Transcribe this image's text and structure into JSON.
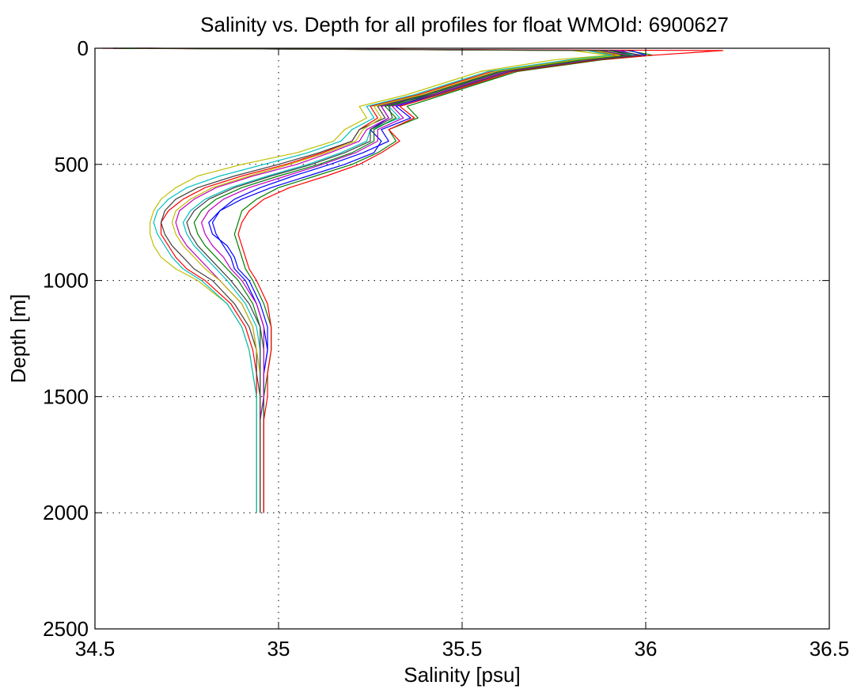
{
  "chart_data": {
    "type": "line",
    "title": "Salinity vs. Depth for all profiles for float WMOId: 6900627",
    "xlabel": "Salinity [psu]",
    "ylabel": "Depth [m]",
    "xlim": [
      34.5,
      36.5
    ],
    "ylim": [
      0,
      2500
    ],
    "y_inverted": true,
    "grid": "dotted",
    "legend": "none",
    "xticks": [
      34.5,
      35,
      35.5,
      36,
      36.5
    ],
    "xtick_labels": [
      "34.5",
      "35",
      "35.5",
      "36",
      "36.5"
    ],
    "yticks": [
      0,
      500,
      1000,
      1500,
      2000,
      2500
    ],
    "ytick_labels": [
      "0",
      "500",
      "1000",
      "1500",
      "2000",
      "2500"
    ],
    "colors": [
      "#0000ff",
      "#008000",
      "#ff0000",
      "#00bfbf",
      "#bf00bf",
      "#bfbf00",
      "#404040"
    ],
    "depths": [
      0,
      10,
      30,
      50,
      100,
      150,
      200,
      250,
      300,
      350,
      400,
      450,
      500,
      550,
      600,
      650,
      700,
      750,
      800,
      850,
      900,
      950,
      1000,
      1100,
      1200,
      1300,
      1400,
      1500,
      1600,
      1700,
      1800,
      1900,
      2000
    ],
    "series": [
      {
        "values": [
          34.55,
          35.9,
          35.98,
          35.85,
          35.62,
          35.52,
          35.42,
          35.28,
          35.3,
          35.25,
          35.28,
          35.26,
          35.18,
          35.08,
          34.98,
          34.9,
          34.84,
          34.81,
          34.82,
          34.86,
          34.88,
          34.89,
          34.92,
          34.95,
          34.97,
          34.97,
          34.96,
          34.96,
          34.95,
          34.95,
          34.95,
          34.95,
          34.95
        ]
      },
      {
        "values": [
          34.6,
          35.95,
          36.02,
          35.88,
          35.65,
          35.55,
          35.45,
          35.35,
          35.38,
          35.3,
          35.32,
          35.27,
          35.2,
          35.1,
          35.0,
          34.94,
          34.9,
          34.89,
          34.88,
          34.89,
          34.9,
          34.91,
          34.93,
          34.96,
          34.98,
          34.98,
          34.97,
          34.96,
          34.96,
          34.96,
          34.96,
          34.96,
          34.96
        ]
      },
      {
        "values": [
          34.52,
          35.85,
          35.92,
          35.8,
          35.58,
          35.48,
          35.38,
          35.25,
          35.27,
          35.22,
          35.2,
          35.12,
          35.02,
          34.9,
          34.8,
          34.74,
          34.7,
          34.68,
          34.68,
          34.7,
          34.72,
          34.75,
          34.8,
          34.87,
          34.91,
          34.93,
          34.94,
          34.94,
          34.94,
          34.94,
          34.94,
          34.94,
          34.94
        ]
      },
      {
        "values": [
          34.58,
          35.92,
          35.97,
          35.84,
          35.6,
          35.5,
          35.4,
          35.3,
          35.33,
          35.25,
          35.24,
          35.17,
          35.08,
          34.97,
          34.87,
          34.8,
          34.76,
          34.74,
          34.75,
          34.77,
          34.8,
          34.83,
          34.86,
          34.91,
          34.94,
          34.95,
          34.95,
          34.95,
          34.95,
          34.95,
          34.95,
          34.95,
          34.95
        ]
      },
      {
        "values": [
          34.65,
          35.88,
          35.95,
          35.82,
          35.6,
          35.5,
          35.4,
          35.28,
          35.3,
          35.24,
          35.22,
          35.14,
          35.05,
          34.93,
          34.83,
          34.77,
          34.73,
          34.72,
          34.73,
          34.75,
          34.78,
          34.81,
          34.84,
          34.9,
          34.93,
          34.94,
          34.95,
          34.95,
          34.95,
          34.95,
          34.95,
          34.95,
          34.95
        ]
      },
      {
        "values": [
          34.6,
          35.8,
          35.9,
          35.75,
          35.55,
          35.45,
          35.35,
          35.22,
          35.24,
          35.18,
          35.15,
          35.05,
          34.9,
          34.78,
          34.72,
          34.68,
          34.66,
          34.65,
          34.65,
          34.66,
          34.68,
          34.72,
          34.78,
          34.86,
          34.9,
          34.92,
          34.93,
          34.94,
          34.94,
          34.94,
          34.94,
          34.94,
          34.94
        ]
      },
      {
        "values": [
          34.55,
          35.87,
          35.94,
          35.82,
          35.6,
          35.5,
          35.4,
          35.27,
          35.29,
          35.22,
          35.2,
          35.11,
          35.0,
          34.88,
          34.78,
          34.72,
          34.69,
          34.68,
          34.69,
          34.71,
          34.74,
          34.77,
          34.82,
          34.88,
          34.92,
          34.94,
          34.94,
          34.95,
          34.95,
          34.95,
          34.95,
          34.95,
          34.95
        ]
      },
      {
        "values": [
          34.62,
          35.96,
          36.0,
          35.86,
          35.63,
          35.53,
          35.43,
          35.32,
          35.36,
          35.28,
          35.3,
          35.23,
          35.14,
          35.04,
          34.95,
          34.88,
          34.84,
          34.82,
          34.83,
          34.85,
          34.87,
          34.88,
          34.91,
          34.94,
          34.96,
          34.97,
          34.96,
          34.96,
          34.96,
          34.96,
          34.96,
          34.96,
          34.96
        ]
      },
      {
        "values": [
          34.57,
          35.9,
          35.96,
          35.83,
          35.61,
          35.51,
          35.41,
          35.29,
          35.32,
          35.26,
          35.26,
          35.2,
          35.11,
          35.0,
          34.9,
          34.83,
          34.79,
          34.77,
          34.78,
          34.8,
          34.83,
          34.86,
          34.89,
          34.93,
          34.95,
          34.96,
          34.96,
          34.96,
          34.96,
          34.96,
          34.96,
          34.96,
          34.96
        ]
      },
      {
        "values": [
          34.63,
          36.21,
          36.02,
          35.87,
          35.64,
          35.54,
          35.44,
          35.33,
          35.37,
          35.3,
          35.33,
          35.28,
          35.22,
          35.13,
          35.03,
          34.96,
          34.92,
          34.9,
          34.89,
          34.9,
          34.91,
          34.92,
          34.94,
          34.97,
          34.98,
          34.98,
          34.97,
          34.97,
          34.96,
          34.96,
          34.96,
          34.96,
          34.96
        ]
      },
      {
        "values": [
          34.59,
          35.84,
          35.91,
          35.79,
          35.57,
          35.47,
          35.37,
          35.24,
          35.26,
          35.2,
          35.17,
          35.08,
          34.96,
          34.84,
          34.75,
          34.7,
          34.67,
          34.66,
          34.67,
          34.69,
          34.71,
          34.74,
          34.79,
          34.86,
          34.9,
          34.92,
          34.93,
          34.94,
          34.94,
          34.94,
          34.94,
          34.94,
          34.94
        ]
      },
      {
        "values": [
          34.61,
          35.93,
          35.98,
          35.85,
          35.62,
          35.52,
          35.42,
          35.31,
          35.34,
          35.27,
          35.27,
          35.21,
          35.12,
          35.02,
          34.92,
          34.85,
          34.81,
          34.79,
          34.8,
          34.82,
          34.85,
          34.87,
          34.9,
          34.94,
          34.96,
          34.96,
          34.96,
          34.96,
          34.95,
          34.95,
          34.95,
          34.95,
          34.95
        ]
      },
      {
        "values": [
          34.56,
          35.86,
          35.93,
          35.81,
          35.59,
          35.49,
          35.39,
          35.26,
          35.28,
          35.23,
          35.21,
          35.13,
          35.03,
          34.92,
          34.82,
          34.76,
          34.72,
          34.71,
          34.72,
          34.74,
          34.77,
          34.8,
          34.84,
          34.9,
          34.93,
          34.94,
          34.95,
          34.95,
          34.95,
          34.95,
          34.95,
          34.95,
          34.95
        ]
      },
      {
        "values": [
          34.64,
          35.91,
          35.99,
          35.86,
          35.63,
          35.53,
          35.43,
          35.3,
          35.31,
          35.25,
          35.25,
          35.18,
          35.09,
          34.98,
          34.88,
          34.81,
          34.77,
          34.75,
          34.76,
          34.78,
          34.81,
          34.84,
          34.87,
          34.92,
          34.95,
          34.95,
          34.95,
          34.95,
          34.95,
          34.95,
          34.95,
          34.95,
          34.95
        ]
      }
    ]
  }
}
